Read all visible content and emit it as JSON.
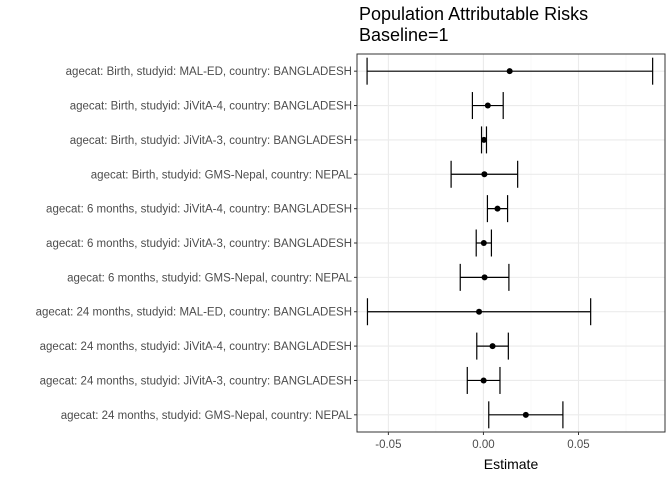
{
  "chart_data": {
    "type": "forest",
    "title": "Population Attributable Risks",
    "subtitle": "Baseline=1",
    "xlabel": "Estimate",
    "ylabel": "",
    "xlim": [
      -0.0665,
      0.0955
    ],
    "x_ticks": [
      -0.05,
      0.0,
      0.05
    ],
    "x_tick_labels": [
      "-0.05",
      "0.00",
      "0.05"
    ],
    "grid": true,
    "categories": [
      "agecat: Birth, studyid: MAL-ED, country: BANGLADESH",
      "agecat: Birth, studyid: JiVitA-4, country: BANGLADESH",
      "agecat: Birth, studyid: JiVitA-3, country: BANGLADESH",
      "agecat: Birth, studyid: GMS-Nepal, country: NEPAL",
      "agecat: 6 months, studyid: JiVitA-4, country: BANGLADESH",
      "agecat: 6 months, studyid: JiVitA-3, country: BANGLADESH",
      "agecat: 6 months, studyid: GMS-Nepal, country: NEPAL",
      "agecat: 24 months, studyid: MAL-ED, country: BANGLADESH",
      "agecat: 24 months, studyid: JiVitA-4, country: BANGLADESH",
      "agecat: 24 months, studyid: JiVitA-3, country: BANGLADESH",
      "agecat: 24 months, studyid: GMS-Nepal, country: NEPAL"
    ],
    "estimates": [
      0.0138,
      0.0023,
      0.0003,
      0.0005,
      0.0074,
      0.0002,
      0.0006,
      -0.0023,
      0.0048,
      0.0001,
      0.0223
    ],
    "lower": [
      -0.0612,
      -0.0058,
      -0.001,
      -0.017,
      0.0021,
      -0.0038,
      -0.0122,
      -0.061,
      -0.0035,
      -0.0085,
      0.0028
    ],
    "upper": [
      0.089,
      0.0104,
      0.0016,
      0.018,
      0.0127,
      0.0042,
      0.0134,
      0.0564,
      0.0131,
      0.0087,
      0.0418
    ]
  },
  "colors": {
    "panel_border": "#333333",
    "grid_major": "#ebebeb",
    "grid_minor": "#f5f5f5",
    "point": "#000000",
    "axis_text": "#4d4d4d"
  }
}
